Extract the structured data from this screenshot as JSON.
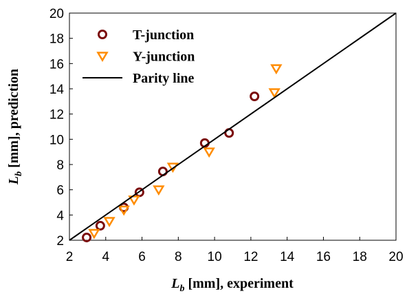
{
  "chart_data": {
    "type": "scatter",
    "x_label": {
      "symbol": "L",
      "subscript": "b",
      "text": " [mm], experiment"
    },
    "y_label": {
      "symbol": "L",
      "subscript": "b",
      "text": " [mm], prediction"
    },
    "xlim": [
      2,
      20
    ],
    "ylim": [
      2,
      20
    ],
    "xticks": [
      2,
      4,
      6,
      8,
      10,
      12,
      14,
      16,
      18,
      20
    ],
    "yticks": [
      2,
      4,
      6,
      8,
      10,
      12,
      14,
      16,
      18,
      20
    ],
    "grid": false,
    "legend": "upper left",
    "series": [
      {
        "name": "T-junction",
        "marker": "circle",
        "color": "#7b0c0c",
        "x": [
          2.95,
          3.7,
          5.0,
          5.86,
          7.15,
          9.46,
          10.8,
          12.2
        ],
        "values": [
          2.22,
          3.15,
          4.6,
          5.8,
          7.45,
          9.7,
          10.5,
          13.4
        ]
      },
      {
        "name": "Y-junction",
        "marker": "triangle-down",
        "color": "#ff8c00",
        "x": [
          3.36,
          4.2,
          5.0,
          5.56,
          6.92,
          7.7,
          9.7,
          13.3,
          13.4
        ],
        "values": [
          2.55,
          3.5,
          4.4,
          5.2,
          6.0,
          7.8,
          9.0,
          13.7,
          15.6
        ]
      },
      {
        "name": "Parity line",
        "marker": "line",
        "color": "#000000",
        "x": [
          2,
          20
        ],
        "values": [
          2,
          20
        ]
      }
    ]
  }
}
